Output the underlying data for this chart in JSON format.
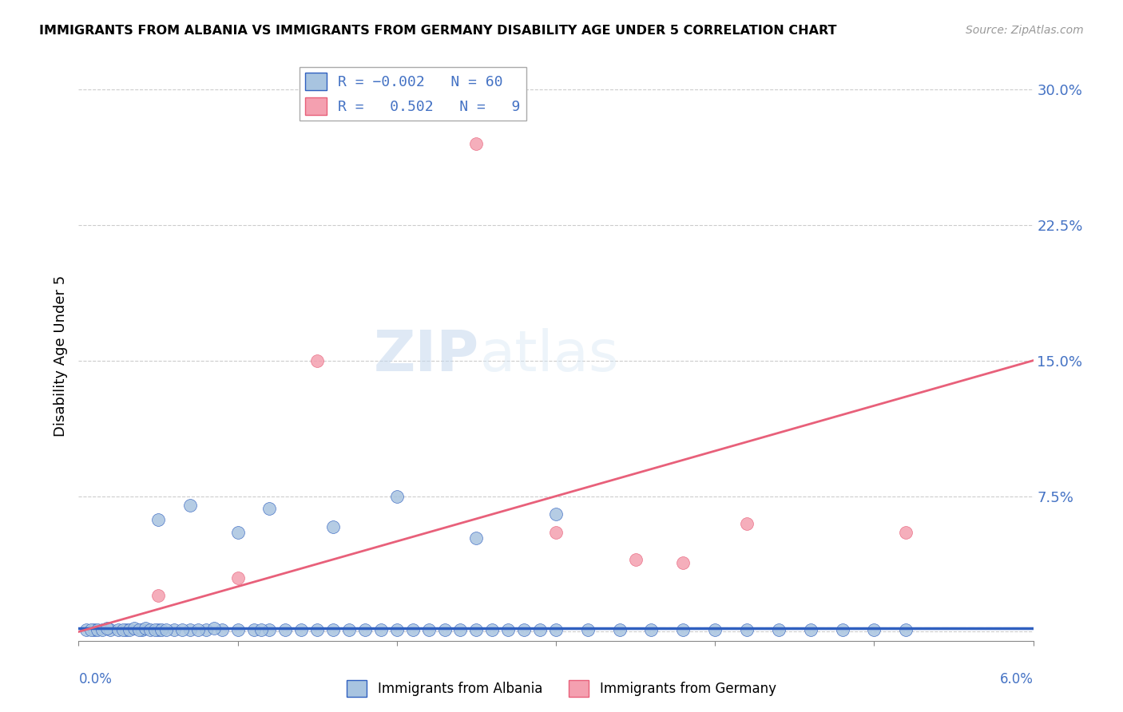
{
  "title": "IMMIGRANTS FROM ALBANIA VS IMMIGRANTS FROM GERMANY DISABILITY AGE UNDER 5 CORRELATION CHART",
  "source": "Source: ZipAtlas.com",
  "ylabel": "Disability Age Under 5",
  "xlim": [
    0.0,
    0.06
  ],
  "ylim": [
    -0.005,
    0.31
  ],
  "albania_R": -0.002,
  "albania_N": 60,
  "germany_R": 0.502,
  "germany_N": 9,
  "albania_color": "#a8c4e0",
  "germany_color": "#f4a0b0",
  "albania_trend_color": "#3060c0",
  "germany_trend_color": "#e8607a",
  "watermark_color": "#c8d8f0",
  "albania_trend": [
    0.0,
    0.06,
    0.002,
    0.002
  ],
  "germany_trend": [
    0.0,
    0.06,
    0.0,
    0.15
  ],
  "albania_x": [
    0.0005,
    0.001,
    0.0008,
    0.0012,
    0.0015,
    0.002,
    0.0018,
    0.0025,
    0.003,
    0.0028,
    0.0032,
    0.0035,
    0.004,
    0.0038,
    0.0042,
    0.0045,
    0.005,
    0.0048,
    0.0052,
    0.006,
    0.0055,
    0.007,
    0.0065,
    0.008,
    0.0075,
    0.009,
    0.0085,
    0.01,
    0.011,
    0.012,
    0.0115,
    0.013,
    0.014,
    0.015,
    0.016,
    0.017,
    0.018,
    0.019,
    0.02,
    0.022,
    0.021,
    0.023,
    0.024,
    0.025,
    0.026,
    0.027,
    0.028,
    0.029,
    0.03,
    0.032,
    0.034,
    0.036,
    0.038,
    0.04,
    0.042,
    0.044,
    0.046,
    0.048,
    0.05,
    0.052
  ],
  "albania_y": [
    0.001,
    0.001,
    0.001,
    0.001,
    0.001,
    0.001,
    0.002,
    0.001,
    0.001,
    0.001,
    0.001,
    0.002,
    0.001,
    0.001,
    0.002,
    0.001,
    0.001,
    0.001,
    0.001,
    0.001,
    0.001,
    0.001,
    0.001,
    0.001,
    0.001,
    0.001,
    0.002,
    0.001,
    0.001,
    0.001,
    0.001,
    0.001,
    0.001,
    0.001,
    0.001,
    0.001,
    0.001,
    0.001,
    0.001,
    0.001,
    0.001,
    0.001,
    0.001,
    0.001,
    0.001,
    0.001,
    0.001,
    0.001,
    0.001,
    0.001,
    0.001,
    0.001,
    0.001,
    0.001,
    0.001,
    0.001,
    0.001,
    0.001,
    0.001,
    0.001
  ],
  "albania_y_high": [
    0.062,
    0.07,
    0.055,
    0.068,
    0.058,
    0.075,
    0.052,
    0.065
  ],
  "albania_x_high": [
    0.005,
    0.007,
    0.01,
    0.012,
    0.016,
    0.02,
    0.025,
    0.03
  ],
  "germany_x": [
    0.005,
    0.01,
    0.015,
    0.025,
    0.03,
    0.035,
    0.038,
    0.042,
    0.052
  ],
  "germany_y": [
    0.02,
    0.03,
    0.15,
    0.27,
    0.055,
    0.04,
    0.038,
    0.06,
    0.055
  ]
}
